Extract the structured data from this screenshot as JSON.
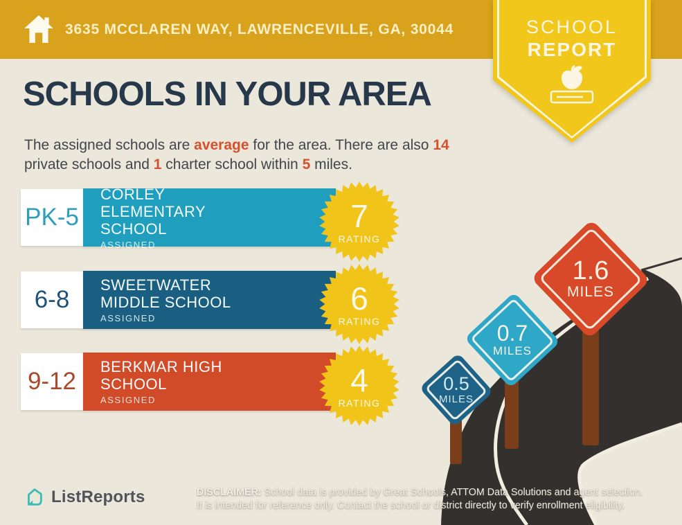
{
  "header": {
    "address": "3635 MCCLAREN WAY, LAWRENCEVILLE, GA, 30044"
  },
  "report_badge": {
    "title_line1": "SCHOOL",
    "title_line2": "REPORT",
    "icon": "apple-on-book-icon"
  },
  "page": {
    "title": "SCHOOLS IN YOUR AREA"
  },
  "subtitle": {
    "segments": [
      {
        "text": "The assigned schools are ",
        "highlight": false
      },
      {
        "text": "average",
        "highlight": true
      },
      {
        "text": " for the area. There are also ",
        "highlight": false
      },
      {
        "text": "14",
        "highlight": true
      },
      {
        "text": " private schools and ",
        "highlight": false
      },
      {
        "text": "1",
        "highlight": true
      },
      {
        "text": " charter school within ",
        "highlight": false
      },
      {
        "text": "5",
        "highlight": true
      },
      {
        "text": " miles.",
        "highlight": false
      }
    ]
  },
  "schools": [
    {
      "grades": "PK-5",
      "name": "CORLEY ELEMENTARY SCHOOL",
      "status": "ASSIGNED",
      "rating": "7",
      "rating_label": "RATING",
      "bar_color": "#209EBE"
    },
    {
      "grades": "6-8",
      "name": "SWEETWATER MIDDLE SCHOOL",
      "status": "ASSIGNED",
      "rating": "6",
      "rating_label": "RATING",
      "bar_color": "#1A5F82"
    },
    {
      "grades": "9-12",
      "name": "BERKMAR HIGH SCHOOL",
      "status": "ASSIGNED",
      "rating": "4",
      "rating_label": "RATING",
      "bar_color": "#D24B28"
    }
  ],
  "signs": [
    {
      "value": "0.5",
      "unit": "MILES",
      "color": "#1E6387"
    },
    {
      "value": "0.7",
      "unit": "MILES",
      "color": "#2FA7C7"
    },
    {
      "value": "1.6",
      "unit": "MILES",
      "color": "#D8492A"
    }
  ],
  "footer": {
    "brand": "ListReports",
    "disclaimer_label": "DISCLAIMER:",
    "disclaimer_line1": " School data is provided by Great Schools, ATTOM Data Solutions and agent selection.",
    "disclaimer_line2": "It is intended for reference only. Contact the school or district directly to verify enrollment eligibility."
  },
  "colors": {
    "header_gold": "#D9A21C",
    "pennant_yellow": "#F2C71B",
    "background_cream": "#ECE7DB",
    "title_navy": "#27384A",
    "accent_red": "#D4502E",
    "starburst_yellow": "#F0C419",
    "road_dark": "#34302D",
    "pole_brown": "#7A3E1B",
    "logo_teal": "#3CBCB4"
  }
}
